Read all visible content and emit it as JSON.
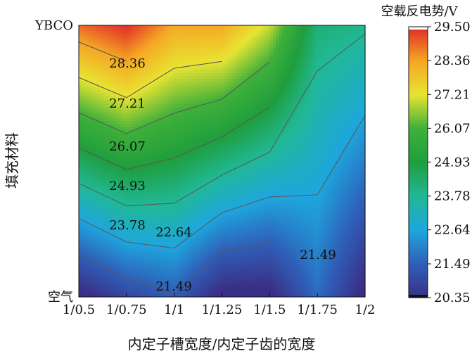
{
  "chart_data": {
    "type": "heatmap",
    "subtype": "filled-contour",
    "title": "",
    "xlabel": "内定子槽宽度/内定子齿的宽度",
    "ylabel": "填充材料",
    "colorbar_label": "空载反电势/V",
    "x_categories": [
      "1/0.5",
      "1/0.75",
      "1/1",
      "1/1.25",
      "1/1.5",
      "1/1.75",
      "1/2"
    ],
    "y_categories": [
      "空气",
      "YBCO"
    ],
    "zlim": [
      20.35,
      29.5
    ],
    "colorbar_ticks": [
      "20.35",
      "21.49",
      "22.64",
      "23.78",
      "24.93",
      "26.07",
      "27.21",
      "28.36",
      "29.50"
    ],
    "contour_levels": [
      21.49,
      22.64,
      23.78,
      24.93,
      26.07,
      27.21,
      28.36
    ],
    "contour_label_texts": [
      "28.36",
      "27.21",
      "26.07",
      "24.93",
      "23.78",
      "22.64",
      "21.49",
      "21.49"
    ],
    "colormap": [
      "#3a2f86",
      "#2f5fb8",
      "#1ea6dd",
      "#20b896",
      "#1f9e3d",
      "#3fb03a",
      "#e8e432",
      "#f5a623",
      "#e02a2a"
    ],
    "values": {
      "空气": [
        20.1,
        20.9,
        21.4,
        20.1,
        20.1,
        21.7,
        20.1
      ],
      "YBCO": [
        28.9,
        29.5,
        28.3,
        28.3,
        27.0,
        24.2,
        23.9
      ]
    }
  }
}
